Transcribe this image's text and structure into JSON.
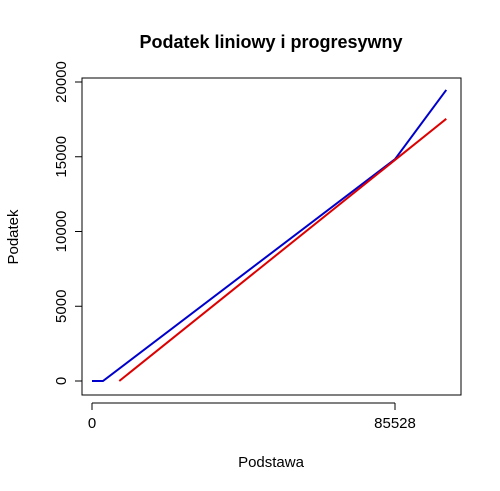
{
  "chart_data": {
    "type": "line",
    "title": "Podatek liniowy i progresywny",
    "x_label": "Podstawa",
    "y_label": "Podatek",
    "series": [
      {
        "color": "#0000cc",
        "x": [
          0,
          3091,
          85528,
          100000
        ],
        "values": [
          0,
          0,
          14839,
          19470
        ]
      },
      {
        "color": "#dd0000",
        "x": [
          7700,
          85528,
          100000
        ],
        "values": [
          0,
          14787,
          17537
        ]
      }
    ],
    "xlim": [
      -2823,
      104157
    ],
    "ylim": [
      -936,
      20268
    ],
    "xticks": [
      0,
      85528
    ],
    "yticks": [
      0,
      5000,
      10000,
      15000,
      20000
    ]
  }
}
